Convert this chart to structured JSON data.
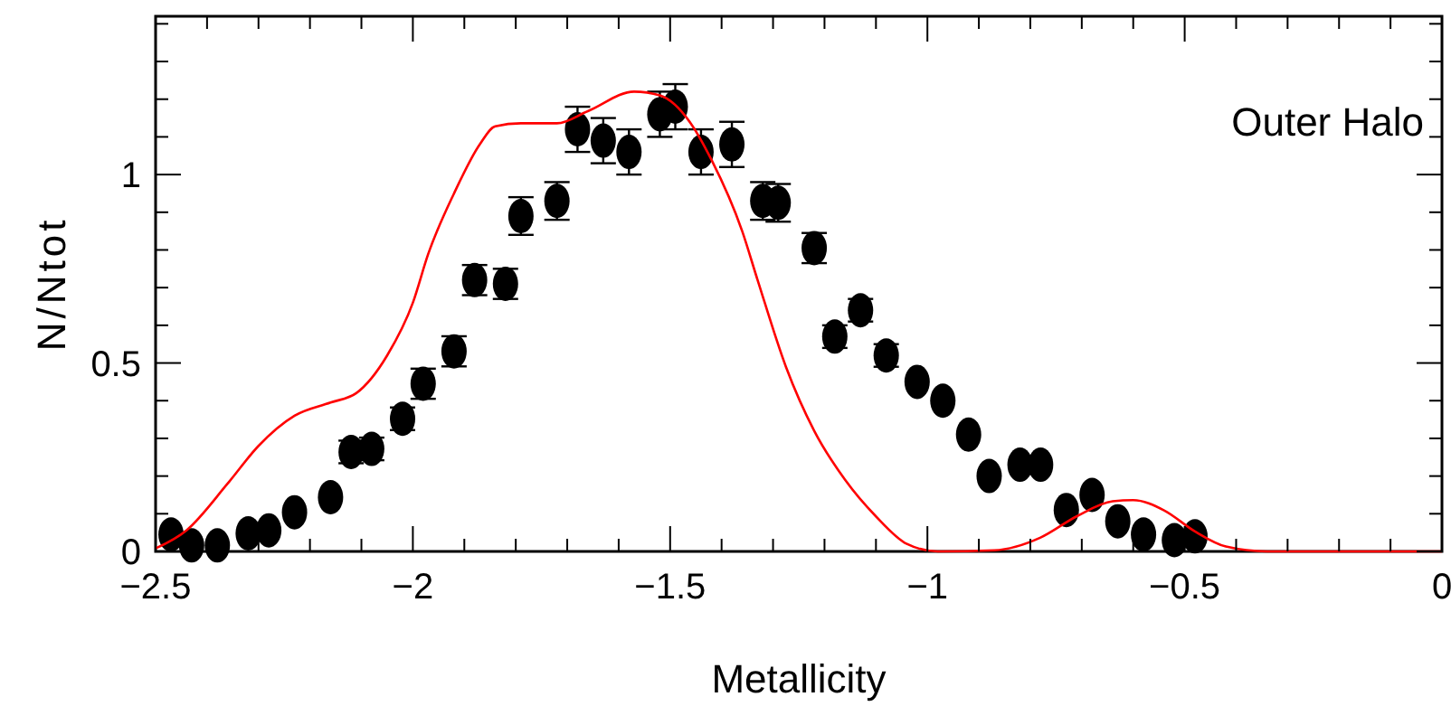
{
  "chart_data": {
    "type": "scatter",
    "xlabel": "Metallicity",
    "ylabel": "N/Ntot",
    "annotations": [
      "Outer Halo"
    ],
    "xlim": [
      -2.5,
      0
    ],
    "ylim": [
      0,
      1.42
    ],
    "xticks": [
      -2.5,
      {
        "value": -2.4,
        "label": null
      },
      {
        "value": -2.3,
        "label": null
      },
      {
        "value": -2.2,
        "label": null
      },
      {
        "value": -2.1,
        "label": null
      },
      -2,
      {
        "value": -1.9,
        "label": null
      },
      {
        "value": -1.8,
        "label": null
      },
      {
        "value": -1.7,
        "label": null
      },
      {
        "value": -1.6,
        "label": null
      },
      -1.5,
      {
        "value": -1.4,
        "label": null
      },
      {
        "value": -1.3,
        "label": null
      },
      {
        "value": -1.2,
        "label": null
      },
      {
        "value": -1.1,
        "label": null
      },
      -1,
      {
        "value": -0.9,
        "label": null
      },
      {
        "value": -0.8,
        "label": null
      },
      {
        "value": -0.7,
        "label": null
      },
      {
        "value": -0.6,
        "label": null
      },
      -0.5,
      {
        "value": -0.4,
        "label": null
      },
      {
        "value": -0.3,
        "label": null
      },
      {
        "value": -0.2,
        "label": null
      },
      {
        "value": -0.1,
        "label": null
      },
      0
    ],
    "yticks": [
      0,
      {
        "value": 0.1,
        "label": null
      },
      {
        "value": 0.2,
        "label": null
      },
      {
        "value": 0.3,
        "label": null
      },
      {
        "value": 0.4,
        "label": null
      },
      0.5,
      {
        "value": 0.6,
        "label": null
      },
      {
        "value": 0.7,
        "label": null
      },
      {
        "value": 0.8,
        "label": null
      },
      {
        "value": 0.9,
        "label": null
      },
      1,
      {
        "value": 1.1,
        "label": null
      },
      {
        "value": 1.2,
        "label": null
      },
      {
        "value": 1.3,
        "label": null
      },
      {
        "value": 1.4,
        "label": null
      }
    ],
    "grid": false,
    "series": [
      {
        "type": "scatter",
        "color": "#000000",
        "marker": "circle",
        "x": [
          -2.47,
          -2.43,
          -2.38,
          -2.32,
          -2.28,
          -2.23,
          -2.16,
          -2.12,
          -2.08,
          -2.02,
          -1.98,
          -1.92,
          -1.88,
          -1.82,
          -1.79,
          -1.72,
          -1.68,
          -1.63,
          -1.58,
          -1.52,
          -1.49,
          -1.44,
          -1.38,
          -1.32,
          -1.29,
          -1.22,
          -1.18,
          -1.13,
          -1.08,
          -1.02,
          -0.97,
          -0.92,
          -0.88,
          -0.82,
          -0.78,
          -0.73,
          -0.68,
          -0.63,
          -0.58,
          -0.52,
          -0.48
        ],
        "values": [
          0.045,
          0.016,
          0.016,
          0.048,
          0.056,
          0.104,
          0.144,
          0.264,
          0.272,
          0.352,
          0.445,
          0.531,
          0.72,
          0.71,
          0.89,
          0.93,
          1.12,
          1.09,
          1.06,
          1.16,
          1.18,
          1.06,
          1.08,
          0.93,
          0.925,
          0.805,
          0.57,
          0.64,
          0.52,
          0.45,
          0.4,
          0.31,
          0.2,
          0.23,
          0.23,
          0.11,
          0.15,
          0.08,
          0.045,
          0.03,
          0.04
        ],
        "errors": [
          null,
          null,
          null,
          null,
          null,
          null,
          null,
          0.03,
          0.03,
          0.03,
          0.04,
          0.04,
          0.04,
          0.04,
          0.05,
          0.05,
          0.06,
          0.06,
          0.06,
          0.06,
          0.06,
          0.06,
          0.06,
          0.05,
          0.05,
          0.04,
          0.03,
          0.03,
          0.03,
          null,
          null,
          null,
          null,
          null,
          null,
          null,
          null,
          null,
          null,
          null,
          null
        ]
      },
      {
        "type": "line",
        "color": "#ff0000",
        "line_style": "solid",
        "x": [
          -2.5,
          -2.44,
          -2.36,
          -2.3,
          -2.23,
          -2.16,
          -2.11,
          -2.05,
          -2.0,
          -1.97,
          -1.92,
          -1.87,
          -1.84,
          -1.79,
          -1.72,
          -1.66,
          -1.57,
          -1.52,
          -1.46,
          -1.42,
          -1.36,
          -1.33,
          -1.275,
          -1.22,
          -1.16,
          -1.1,
          -1.04,
          -0.98,
          -0.87,
          -0.78,
          -0.71,
          -0.64,
          -0.6,
          -0.54,
          -0.48,
          -0.42,
          -0.34,
          -0.2,
          0
        ],
        "values": [
          0.008,
          0.056,
          0.18,
          0.28,
          0.36,
          0.395,
          0.42,
          0.52,
          0.66,
          0.79,
          0.95,
          1.08,
          1.128,
          1.136,
          1.136,
          1.168,
          1.22,
          1.21,
          1.136,
          1.04,
          0.85,
          0.72,
          0.49,
          0.32,
          0.19,
          0.093,
          0.02,
          0,
          0.003,
          0.037,
          0.093,
          0.133,
          0.136,
          0.109,
          0.053,
          0.013,
          0,
          0,
          0
        ]
      }
    ]
  }
}
